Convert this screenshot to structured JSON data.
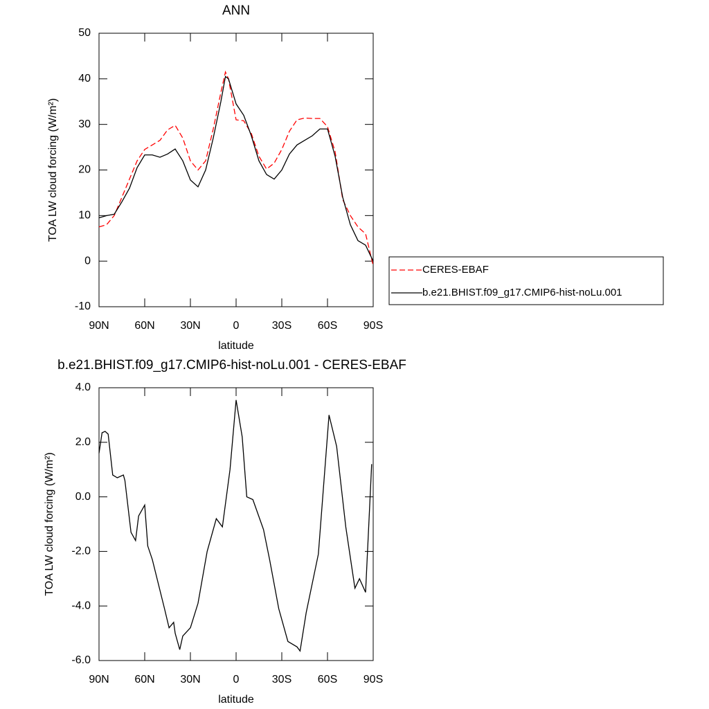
{
  "chart_data": [
    {
      "type": "line",
      "title": "ANN",
      "xlabel": "latitude",
      "ylabel": "TOA LW cloud forcing (W/m²)",
      "x": [
        90,
        85,
        80,
        75,
        70,
        65,
        60,
        55,
        50,
        45,
        40,
        35,
        30,
        25,
        20,
        15,
        10,
        7,
        5,
        0,
        -5,
        -10,
        -15,
        -20,
        -25,
        -30,
        -35,
        -40,
        -45,
        -50,
        -55,
        -60,
        -65,
        -70,
        -75,
        -80,
        -85,
        -90
      ],
      "series": [
        {
          "name": "CERES-EBAF",
          "color": "#ff0000",
          "dash": "dashed",
          "values": [
            7.5,
            8,
            10,
            14,
            18,
            22,
            24.5,
            25.5,
            26.5,
            28.8,
            29.8,
            27,
            22,
            20,
            22,
            29,
            37,
            41.5,
            40,
            31,
            30.8,
            28,
            23,
            20.2,
            21.5,
            24.5,
            28.5,
            31,
            31.4,
            31.3,
            31.3,
            29.5,
            24,
            13.5,
            10,
            7.5,
            6,
            -1
          ]
        },
        {
          "name": "b.e21.BHIST.f09_g17.CMIP6-hist-noLu.001",
          "color": "#000000",
          "dash": "solid",
          "values": [
            9.5,
            10,
            10.3,
            13,
            16,
            20.5,
            23.3,
            23.3,
            22.8,
            23.5,
            24.6,
            22,
            17.8,
            16.3,
            20,
            27,
            35,
            40.5,
            40,
            34.5,
            32,
            27.5,
            22,
            19,
            18,
            20,
            23.5,
            25.5,
            26.5,
            27.5,
            29,
            29,
            23,
            14,
            8,
            4.5,
            3.5,
            0
          ]
        }
      ],
      "xlim": [
        90,
        -90
      ],
      "xticks": [
        {
          "value": 90,
          "label": "90N"
        },
        {
          "value": 60,
          "label": "60N"
        },
        {
          "value": 30,
          "label": "30N"
        },
        0,
        {
          "value": -30,
          "label": "30S"
        },
        {
          "value": -60,
          "label": "60S"
        },
        {
          "value": -90,
          "label": "90S"
        }
      ],
      "ylim": [
        -10,
        50
      ],
      "yticks": [
        -10,
        0,
        10,
        20,
        30,
        40,
        50
      ],
      "grid": false,
      "legend": "right"
    },
    {
      "type": "line",
      "title": "b.e21.BHIST.f09_g17.CMIP6-hist-noLu.001 - CERES-EBAF",
      "xlabel": "latitude",
      "ylabel": "TOA LW cloud forcing (W/m²)",
      "x": [
        90,
        88,
        86,
        84,
        81,
        78,
        74,
        73,
        69,
        66,
        64,
        60,
        58,
        55,
        47,
        44,
        41,
        40,
        37,
        35,
        30,
        25,
        19,
        13,
        9,
        4,
        0,
        -4,
        -7,
        -11,
        -18,
        -22,
        -28,
        -34,
        -40,
        -42,
        -46,
        -54,
        -61,
        -66,
        -72,
        -78,
        -81,
        -85,
        -89
      ],
      "values": [
        1.6,
        2.35,
        2.4,
        2.3,
        0.8,
        0.7,
        0.8,
        0.6,
        -1.3,
        -1.6,
        -0.7,
        -0.3,
        -1.8,
        -2.3,
        -4.1,
        -4.8,
        -4.6,
        -5,
        -5.6,
        -5.1,
        -4.8,
        -3.9,
        -2,
        -0.8,
        -1.1,
        1,
        3.55,
        2.2,
        0,
        -0.1,
        -1.2,
        -2.3,
        -4.1,
        -5.3,
        -5.5,
        -5.65,
        -4.25,
        -2.1,
        3,
        1.85,
        -1.1,
        -3.35,
        -3,
        -3.5,
        1.2
      ],
      "color": "#000000",
      "xlim": [
        90,
        -90
      ],
      "xticks": [
        {
          "value": 90,
          "label": "90N"
        },
        {
          "value": 60,
          "label": "60N"
        },
        {
          "value": 30,
          "label": "30N"
        },
        0,
        {
          "value": -30,
          "label": "30S"
        },
        {
          "value": -60,
          "label": "60S"
        },
        {
          "value": -90,
          "label": "90S"
        }
      ],
      "ylim": [
        -6,
        4
      ],
      "yticks": [
        {
          "value": -6,
          "label": "-6.0"
        },
        {
          "value": -4,
          "label": "-4.0"
        },
        {
          "value": -2,
          "label": "-2.0"
        },
        {
          "value": 0,
          "label": "0.0"
        },
        {
          "value": 2,
          "label": "2.0"
        },
        {
          "value": 4,
          "label": "4.0"
        }
      ],
      "grid": false
    }
  ]
}
